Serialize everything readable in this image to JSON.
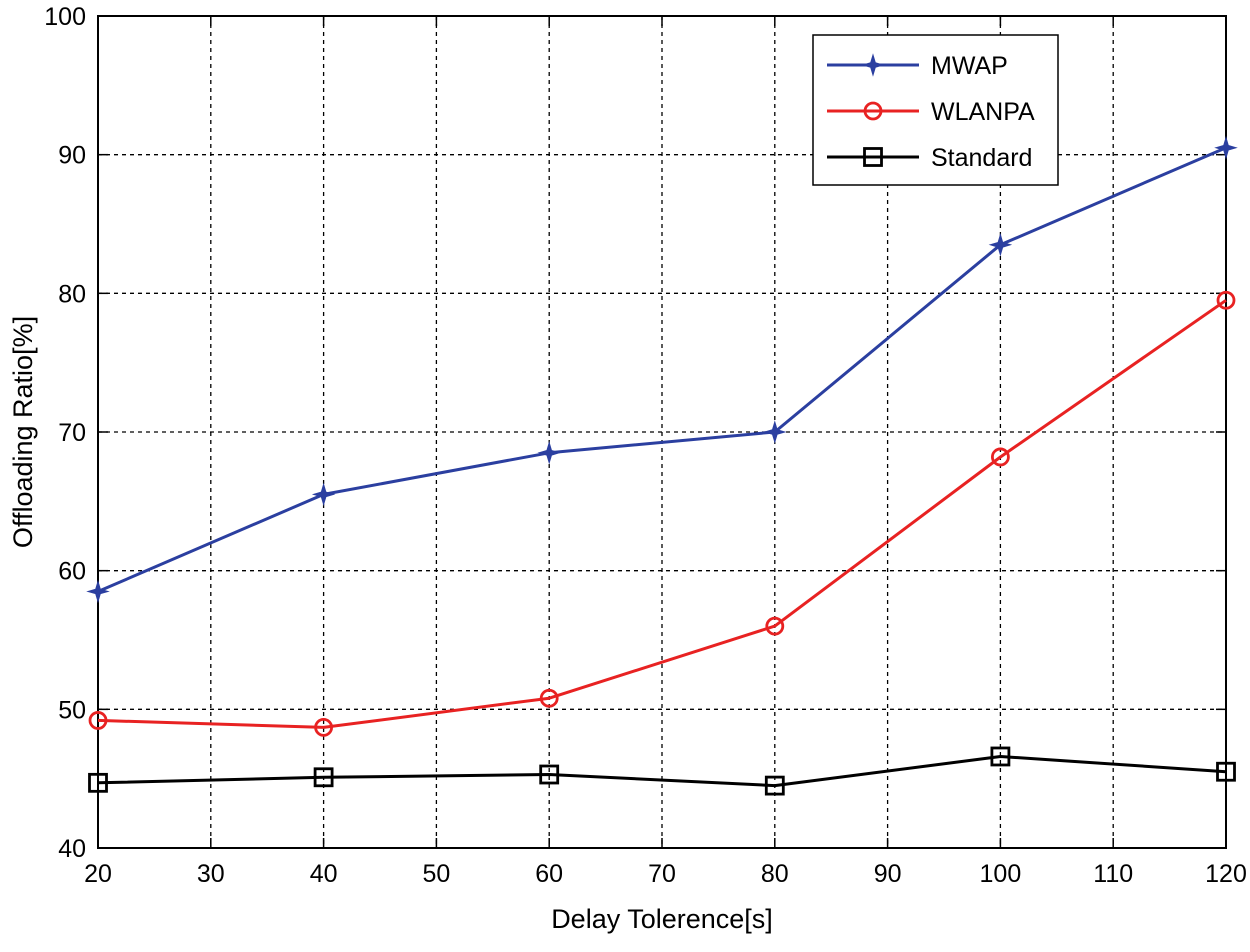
{
  "chart_data": {
    "type": "line",
    "title": "",
    "xlabel": "Delay Tolerence[s]",
    "ylabel": "Offloading Ratio[%]",
    "xlim": [
      20,
      120
    ],
    "ylim": [
      40,
      100
    ],
    "xticks": [
      20,
      30,
      40,
      50,
      60,
      70,
      80,
      90,
      100,
      110,
      120
    ],
    "yticks": [
      40,
      50,
      60,
      70,
      80,
      90,
      100
    ],
    "grid": true,
    "legend_position": "top-right",
    "x": [
      20,
      40,
      60,
      80,
      100,
      120
    ],
    "series": [
      {
        "name": "MWAP",
        "color": "#2b3fa0",
        "marker": "star",
        "values": [
          58.5,
          65.5,
          68.5,
          70.0,
          83.5,
          90.5
        ]
      },
      {
        "name": "WLANPA",
        "color": "#e82222",
        "marker": "circle",
        "values": [
          49.2,
          48.7,
          50.8,
          56.0,
          68.2,
          79.5
        ]
      },
      {
        "name": "Standard",
        "color": "#000000",
        "marker": "square",
        "values": [
          44.7,
          45.1,
          45.3,
          44.5,
          46.6,
          45.5
        ]
      }
    ]
  }
}
